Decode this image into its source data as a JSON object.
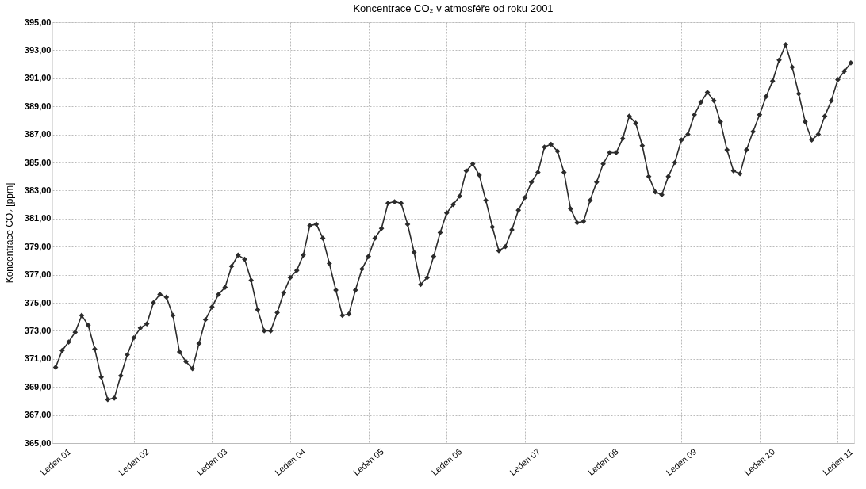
{
  "chart_data": {
    "type": "line",
    "title": "Koncentrace CO₂ v atmosféře od roku 2001",
    "ylabel": "Koncentrace CO₂ [ppm]",
    "categories": [
      "Leden 01",
      null,
      null,
      null,
      null,
      null,
      null,
      null,
      null,
      null,
      null,
      null,
      "Leden 02",
      null,
      null,
      null,
      null,
      null,
      null,
      null,
      null,
      null,
      null,
      null,
      "Leden 03",
      null,
      null,
      null,
      null,
      null,
      null,
      null,
      null,
      null,
      null,
      null,
      "Leden 04",
      null,
      null,
      null,
      null,
      null,
      null,
      null,
      null,
      null,
      null,
      null,
      "Leden 05",
      null,
      null,
      null,
      null,
      null,
      null,
      null,
      null,
      null,
      null,
      null,
      "Leden 06",
      null,
      null,
      null,
      null,
      null,
      null,
      null,
      null,
      null,
      null,
      null,
      "Leden 07",
      null,
      null,
      null,
      null,
      null,
      null,
      null,
      null,
      null,
      null,
      null,
      "Leden 08",
      null,
      null,
      null,
      null,
      null,
      null,
      null,
      null,
      null,
      null,
      null,
      "Leden 09",
      null,
      null,
      null,
      null,
      null,
      null,
      null,
      null,
      null,
      null,
      null,
      "Leden 10",
      null,
      null,
      null,
      null,
      null,
      null,
      null,
      null,
      null,
      null,
      null,
      "Leden 11",
      null,
      null
    ],
    "series": [
      {
        "color": "#2b2b2b",
        "values": [
          370.4,
          371.6,
          372.2,
          372.9,
          374.1,
          373.4,
          371.7,
          369.7,
          368.1,
          368.2,
          369.8,
          371.3,
          372.5,
          373.2,
          373.5,
          375.0,
          375.6,
          375.4,
          374.1,
          371.5,
          370.8,
          370.3,
          372.1,
          373.8,
          374.7,
          375.6,
          376.1,
          377.6,
          378.4,
          378.1,
          376.6,
          374.5,
          373.0,
          373.0,
          374.3,
          375.7,
          376.8,
          377.3,
          378.4,
          380.5,
          380.6,
          379.6,
          377.8,
          375.9,
          374.1,
          374.2,
          375.9,
          377.4,
          378.3,
          379.6,
          380.3,
          382.1,
          382.2,
          382.1,
          380.6,
          378.6,
          376.3,
          376.8,
          378.3,
          380.0,
          381.4,
          382.0,
          382.6,
          384.4,
          384.9,
          384.1,
          382.3,
          380.4,
          378.7,
          379.0,
          380.2,
          381.6,
          382.5,
          383.6,
          384.3,
          386.1,
          386.3,
          385.8,
          384.3,
          381.7,
          380.7,
          380.8,
          382.3,
          383.6,
          384.9,
          385.7,
          385.7,
          386.7,
          388.3,
          387.8,
          386.2,
          384.0,
          382.9,
          382.7,
          384.0,
          385.0,
          386.6,
          387.0,
          388.4,
          389.3,
          390.0,
          389.4,
          387.9,
          385.9,
          384.4,
          384.2,
          385.9,
          387.2,
          388.4,
          389.7,
          390.8,
          392.3,
          393.4,
          391.8,
          389.9,
          387.9,
          386.6,
          387.0,
          388.3,
          389.4,
          390.9,
          391.5,
          392.1
        ]
      }
    ],
    "ylim": [
      365,
      395
    ],
    "yticks": [
      {
        "value": 365,
        "label": "365,00"
      },
      {
        "value": 367,
        "label": "367,00"
      },
      {
        "value": 369,
        "label": "369,00"
      },
      {
        "value": 371,
        "label": "371,00"
      },
      {
        "value": 373,
        "label": "373,00"
      },
      {
        "value": 375,
        "label": "375,00"
      },
      {
        "value": 377,
        "label": "377,00"
      },
      {
        "value": 379,
        "label": "379,00"
      },
      {
        "value": 381,
        "label": "381,00"
      },
      {
        "value": 383,
        "label": "383,00"
      },
      {
        "value": 385,
        "label": "385,00"
      },
      {
        "value": 387,
        "label": "387,00"
      },
      {
        "value": 389,
        "label": "389,00"
      },
      {
        "value": 391,
        "label": "391,00"
      },
      {
        "value": 393,
        "label": "393,00"
      },
      {
        "value": 395,
        "label": "395,00"
      }
    ],
    "grid": true,
    "marker": "diamond",
    "line_style": "solid"
  }
}
